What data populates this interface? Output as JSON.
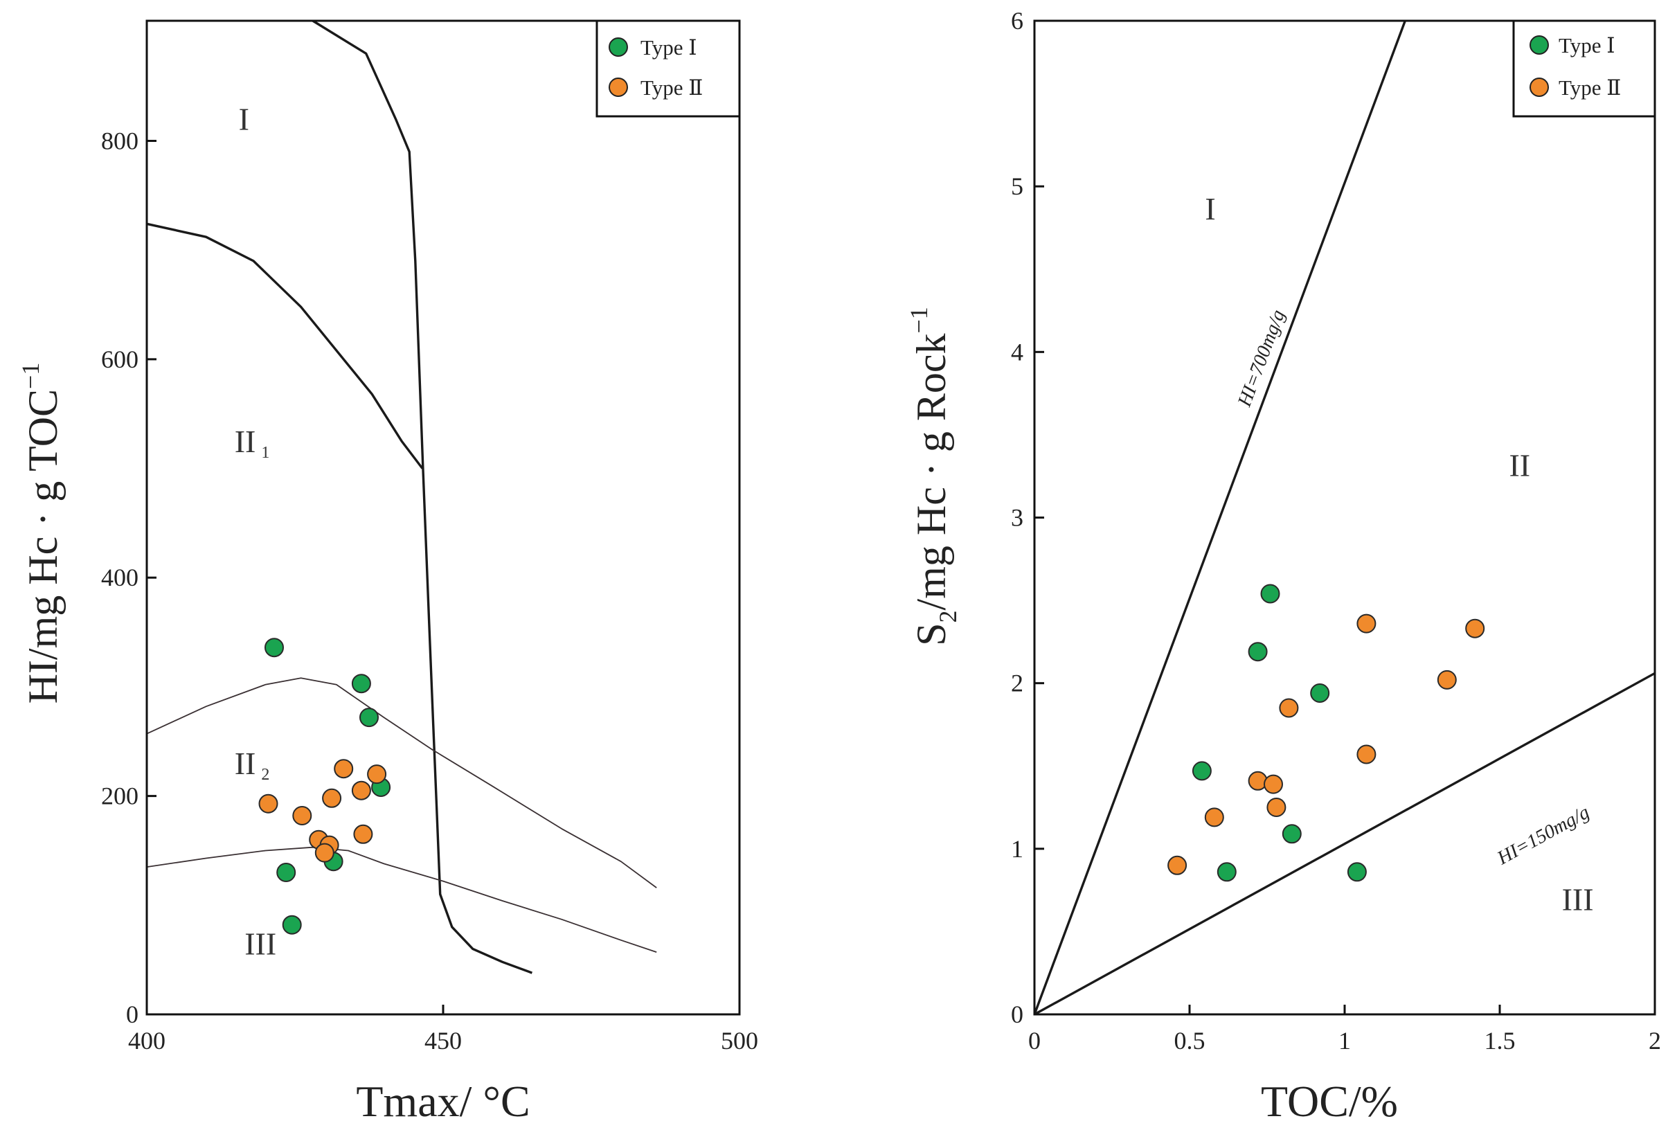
{
  "chart_data": [
    {
      "type": "scatter",
      "name": "HI vs Tmax",
      "xlabel": "Tmax/ °C",
      "ylabel_main": "HI/mg Hc · g TOC",
      "ylabel_sup": "−1",
      "xlim": [
        400,
        500
      ],
      "ylim": [
        0,
        910
      ],
      "xticks": [
        400,
        450,
        500
      ],
      "yticks": [
        0,
        200,
        400,
        600,
        800
      ],
      "regions": {
        "I": "I",
        "II1": "II",
        "II1_sub": "1",
        "II2": "II",
        "II2_sub": "2",
        "III": "III"
      },
      "region_values": {
        "I": [
          415.5,
          810
        ],
        "II1": [
          414.8,
          515
        ],
        "II2": [
          414.8,
          220
        ],
        "III": [
          416.5,
          55
        ]
      },
      "legend": [
        "Type Ⅰ",
        "Type Ⅱ"
      ],
      "colors": {
        "type1": "#1aa450",
        "type2": "#f08a2c"
      },
      "boundary_curves": [
        [
          [
            428,
            910
          ],
          [
            437,
            880
          ],
          [
            442,
            820
          ],
          [
            444.3,
            790
          ],
          [
            445.3,
            690
          ],
          [
            446.6,
            500
          ],
          [
            447.7,
            350
          ],
          [
            448.3,
            270
          ],
          [
            448.9,
            190
          ],
          [
            449.5,
            110
          ],
          [
            451.5,
            80
          ],
          [
            455,
            60
          ],
          [
            460,
            48
          ],
          [
            465,
            38
          ]
        ],
        [
          [
            400,
            724
          ],
          [
            410,
            712
          ],
          [
            418,
            690
          ],
          [
            426,
            648
          ],
          [
            432,
            608
          ],
          [
            438,
            568
          ],
          [
            443,
            525
          ],
          [
            446.5,
            500
          ]
        ],
        [
          [
            400,
            257
          ],
          [
            410,
            282
          ],
          [
            420,
            302
          ],
          [
            426,
            308
          ],
          [
            432,
            302
          ],
          [
            440,
            272
          ],
          [
            448,
            243
          ],
          [
            458,
            210
          ],
          [
            470,
            170
          ],
          [
            480,
            140
          ],
          [
            486,
            116
          ]
        ],
        [
          [
            400,
            135
          ],
          [
            410,
            143
          ],
          [
            420,
            150
          ],
          [
            428,
            153
          ],
          [
            434,
            150
          ],
          [
            440,
            138
          ],
          [
            450,
            122
          ],
          [
            460,
            104
          ],
          [
            470,
            87
          ],
          [
            480,
            68
          ],
          [
            486,
            57
          ]
        ]
      ],
      "series": [
        {
          "name": "Type Ⅰ",
          "points": [
            [
              421.5,
              336
            ],
            [
              436.2,
              303
            ],
            [
              437.5,
              272
            ],
            [
              439.5,
              208
            ],
            [
              423.5,
              130
            ],
            [
              431.5,
              140
            ],
            [
              424.5,
              82
            ]
          ]
        },
        {
          "name": "Type Ⅱ",
          "points": [
            [
              420.5,
              193
            ],
            [
              426.2,
              182
            ],
            [
              433.2,
              225
            ],
            [
              438.8,
              220
            ],
            [
              436.2,
              205
            ],
            [
              431.2,
              198
            ],
            [
              429.0,
              160
            ],
            [
              430.8,
              155
            ],
            [
              430.0,
              148
            ],
            [
              436.5,
              165
            ]
          ]
        }
      ]
    },
    {
      "type": "scatter",
      "name": "S2 vs TOC",
      "xlabel": "TOC/%",
      "ylabel_main": "S",
      "ylabel_sub": "2",
      "ylabel_rest": "/mg Hc · g Rock",
      "ylabel_sup": "−1",
      "xlim": [
        0,
        2
      ],
      "ylim": [
        0,
        6
      ],
      "xticks": [
        "0",
        "0.5",
        "1",
        "1.5",
        "2"
      ],
      "xtick_values": [
        0,
        0.5,
        1,
        1.5,
        2
      ],
      "yticks": [
        0,
        1,
        2,
        3,
        4,
        5,
        6
      ],
      "regions": {
        "I": "I",
        "II": "II",
        "III": "III"
      },
      "region_values": {
        "I": [
          0.55,
          4.8
        ],
        "II": [
          1.53,
          3.25
        ],
        "III": [
          1.7,
          0.63
        ]
      },
      "reference_lines": [
        {
          "label": "HI=700mg/g",
          "points": [
            [
              0,
              0
            ],
            [
              1.195,
              6.0
            ]
          ],
          "label_at": [
            0.75,
            3.95
          ]
        },
        {
          "label": "HI=150mg/g",
          "points": [
            [
              0,
              0
            ],
            [
              2.0,
              2.06
            ]
          ],
          "label_at": [
            1.65,
            1.05
          ]
        }
      ],
      "legend": [
        "Type Ⅰ",
        "Type Ⅱ"
      ],
      "colors": {
        "type1": "#1aa450",
        "type2": "#f08a2c"
      },
      "series": [
        {
          "name": "Type Ⅰ",
          "points": [
            [
              0.76,
              2.54
            ],
            [
              0.72,
              2.19
            ],
            [
              0.92,
              1.94
            ],
            [
              0.54,
              1.47
            ],
            [
              0.83,
              1.09
            ],
            [
              0.62,
              0.86
            ],
            [
              1.04,
              0.86
            ]
          ]
        },
        {
          "name": "Type Ⅱ",
          "points": [
            [
              1.07,
              2.36
            ],
            [
              1.42,
              2.33
            ],
            [
              1.33,
              2.02
            ],
            [
              0.82,
              1.85
            ],
            [
              1.07,
              1.57
            ],
            [
              0.72,
              1.41
            ],
            [
              0.77,
              1.39
            ],
            [
              0.78,
              1.25
            ],
            [
              0.58,
              1.19
            ],
            [
              0.46,
              0.9
            ]
          ]
        }
      ]
    }
  ]
}
